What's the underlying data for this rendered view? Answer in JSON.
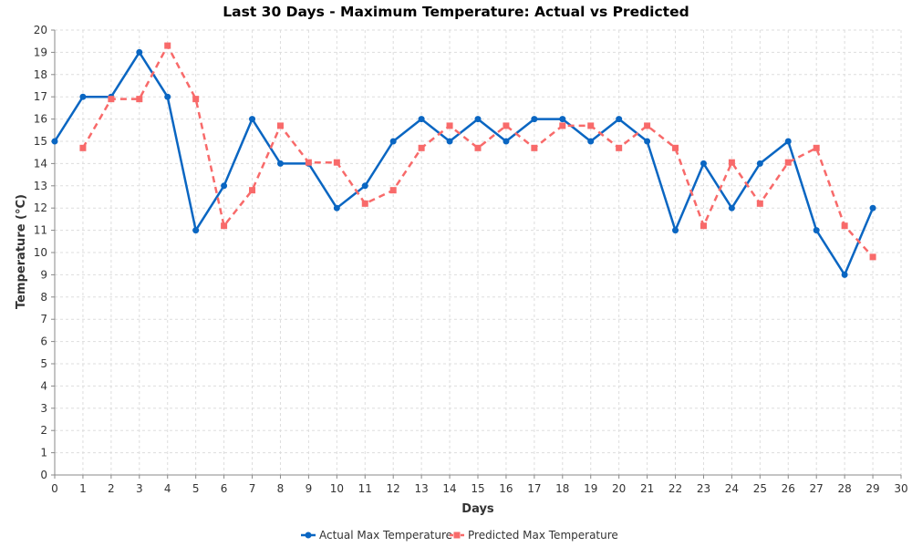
{
  "chart_data": {
    "type": "line",
    "title": "Last 30 Days - Maximum Temperature: Actual vs Predicted",
    "xlabel": "Days",
    "ylabel": "Temperature (°C)",
    "xlim": [
      0,
      30
    ],
    "ylim": [
      0,
      20
    ],
    "x_ticks": [
      0,
      1,
      2,
      3,
      4,
      5,
      6,
      7,
      8,
      9,
      10,
      11,
      12,
      13,
      14,
      15,
      16,
      17,
      18,
      19,
      20,
      21,
      22,
      23,
      24,
      25,
      26,
      27,
      28,
      29,
      30
    ],
    "y_ticks": [
      0,
      1,
      2,
      3,
      4,
      5,
      6,
      7,
      8,
      9,
      10,
      11,
      12,
      13,
      14,
      15,
      16,
      17,
      18,
      19,
      20
    ],
    "grid": true,
    "legend_position": "bottom",
    "series": [
      {
        "name": "Actual Max Temperature",
        "color": "#0a66c2",
        "style": "solid",
        "marker": "circle",
        "x": [
          0,
          1,
          2,
          3,
          4,
          5,
          6,
          7,
          8,
          9,
          10,
          11,
          12,
          13,
          14,
          15,
          16,
          17,
          18,
          19,
          20,
          21,
          22,
          23,
          24,
          25,
          26,
          27,
          28,
          29
        ],
        "y": [
          15,
          17,
          17,
          19,
          17,
          11,
          13,
          16,
          14,
          14,
          12,
          13,
          15,
          16,
          15,
          16,
          15,
          16,
          16,
          15,
          16,
          15,
          11,
          14,
          12,
          14,
          15,
          11,
          9,
          12
        ]
      },
      {
        "name": "Predicted Max Temperature",
        "color": "#f86a6a",
        "style": "dashed",
        "marker": "square",
        "x": [
          1,
          2,
          3,
          4,
          5,
          6,
          7,
          8,
          9,
          10,
          11,
          12,
          13,
          14,
          15,
          16,
          17,
          18,
          19,
          20,
          21,
          22,
          23,
          24,
          25,
          26,
          27,
          28,
          29
        ],
        "y": [
          14.7,
          16.9,
          16.9,
          19.3,
          16.9,
          11.2,
          12.8,
          15.7,
          14.05,
          14.05,
          12.2,
          12.8,
          14.7,
          15.7,
          14.7,
          15.7,
          14.7,
          15.7,
          15.7,
          14.7,
          15.7,
          14.7,
          11.2,
          14.05,
          12.2,
          14.05,
          14.7,
          11.2,
          9.8
        ]
      }
    ]
  }
}
